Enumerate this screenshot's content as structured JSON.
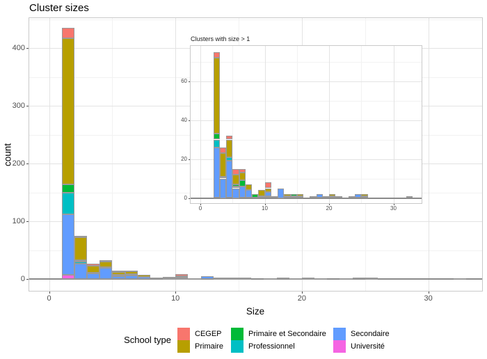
{
  "title": "Cluster sizes",
  "axes": {
    "x_label": "Size",
    "y_label": "count",
    "x_ticks": [
      0,
      10,
      20,
      30
    ],
    "y_ticks": [
      0,
      100,
      200,
      300,
      400
    ]
  },
  "inset": {
    "title": "Clusters with size > 1",
    "x_ticks": [
      0,
      10,
      20,
      30
    ],
    "y_ticks": [
      0,
      20,
      40,
      60
    ]
  },
  "legend": {
    "title": "School type",
    "entries": [
      {
        "label": "CEGEP",
        "color": "#F8766D"
      },
      {
        "label": "Primaire",
        "color": "#B79F00"
      },
      {
        "label": "Primaire et Secondaire",
        "color": "#00BA38"
      },
      {
        "label": "Professionnel",
        "color": "#00BFC4"
      },
      {
        "label": "Secondaire",
        "color": "#619CFF"
      },
      {
        "label": "Université",
        "color": "#F564E3"
      }
    ]
  },
  "stack_order_bottom_up": [
    "Université",
    "Secondaire",
    "Professionnel",
    "Primaire et Secondaire",
    "Primaire",
    "CEGEP"
  ],
  "chart_data": [
    {
      "type": "bar",
      "stacked": true,
      "title": "Cluster sizes",
      "xlabel": "Size",
      "ylabel": "count",
      "note": "histogram, binwidth 1, bar spans [size, size+1)",
      "xlim": [
        0,
        34
      ],
      "ylim": [
        0,
        457
      ],
      "x_ticks": [
        0,
        10,
        20,
        30
      ],
      "y_ticks": [
        0,
        100,
        200,
        300,
        400
      ],
      "x_minor": [
        5,
        15,
        25
      ],
      "y_minor": [
        50,
        150,
        250,
        350,
        450
      ],
      "grid": true,
      "legend_position": "bottom",
      "x": [
        1,
        2,
        3,
        4,
        5,
        6,
        7,
        8,
        9,
        10,
        11,
        12,
        13,
        14,
        15,
        17,
        18,
        19,
        20,
        21,
        23,
        24,
        25,
        32
      ],
      "series": [
        {
          "name": "CEGEP",
          "values": [
            18,
            3,
            3,
            2,
            3,
            2,
            0,
            0,
            0,
            3,
            0,
            0,
            0,
            0,
            0,
            0,
            0,
            0,
            0,
            0,
            0,
            0,
            0,
            0
          ]
        },
        {
          "name": "Primaire",
          "values": [
            253,
            39,
            12,
            9,
            5,
            4,
            3,
            0,
            3,
            2,
            0,
            0,
            1,
            0,
            1,
            0,
            0,
            0,
            1,
            0,
            0,
            0,
            1,
            0
          ]
        },
        {
          "name": "Primaire et Secondaire",
          "values": [
            15,
            3,
            0,
            0,
            1,
            3,
            0,
            2,
            0,
            0,
            0,
            0,
            0,
            1,
            0,
            0,
            0,
            0,
            0,
            0,
            0,
            0,
            0,
            0
          ]
        },
        {
          "name": "Professionnel",
          "values": [
            37,
            4,
            1,
            2,
            1,
            0,
            0,
            0,
            0,
            0,
            0,
            0,
            0,
            0,
            0,
            0,
            0,
            0,
            0,
            0,
            0,
            0,
            0,
            0
          ]
        },
        {
          "name": "Secondaire",
          "values": [
            105,
            26,
            10,
            19,
            5,
            6,
            4,
            0,
            1,
            2,
            1,
            5,
            1,
            0,
            1,
            1,
            2,
            1,
            1,
            1,
            1,
            2,
            1,
            1
          ]
        },
        {
          "name": "Université",
          "values": [
            7,
            0,
            0,
            0,
            0,
            0,
            0,
            0,
            0,
            1,
            0,
            0,
            0,
            1,
            0,
            0,
            0,
            0,
            0,
            0,
            0,
            0,
            0,
            0
          ]
        }
      ]
    },
    {
      "type": "bar",
      "stacked": true,
      "title": "Clusters with size > 1",
      "xlabel": "",
      "ylabel": "",
      "note": "inset: same histogram excluding clusters of size 1",
      "xlim": [
        0,
        34
      ],
      "ylim": [
        0,
        79
      ],
      "x_ticks": [
        0,
        10,
        20,
        30
      ],
      "y_ticks": [
        0,
        20,
        40,
        60
      ],
      "x_minor": [
        5,
        15,
        25
      ],
      "y_minor": [
        10,
        30,
        50,
        70
      ],
      "grid": true,
      "x": [
        2,
        3,
        4,
        5,
        6,
        7,
        8,
        9,
        10,
        11,
        12,
        13,
        14,
        15,
        17,
        18,
        19,
        20,
        21,
        23,
        24,
        25,
        32
      ],
      "series": [
        {
          "name": "CEGEP",
          "values": [
            3,
            3,
            2,
            3,
            2,
            0,
            0,
            0,
            3,
            0,
            0,
            0,
            0,
            0,
            0,
            0,
            0,
            0,
            0,
            0,
            0,
            0,
            0
          ]
        },
        {
          "name": "Primaire",
          "values": [
            39,
            12,
            9,
            5,
            4,
            3,
            0,
            3,
            2,
            0,
            0,
            1,
            0,
            1,
            0,
            0,
            0,
            1,
            0,
            0,
            0,
            1,
            0
          ]
        },
        {
          "name": "Primaire et Secondaire",
          "values": [
            3,
            0,
            0,
            1,
            3,
            0,
            2,
            0,
            0,
            0,
            0,
            0,
            1,
            0,
            0,
            0,
            0,
            0,
            0,
            0,
            0,
            0,
            0
          ]
        },
        {
          "name": "Professionnel",
          "values": [
            4,
            1,
            2,
            1,
            0,
            0,
            0,
            0,
            0,
            0,
            0,
            0,
            0,
            0,
            0,
            0,
            0,
            0,
            0,
            0,
            0,
            0,
            0
          ]
        },
        {
          "name": "Secondaire",
          "values": [
            26,
            10,
            19,
            5,
            6,
            4,
            0,
            1,
            2,
            1,
            5,
            1,
            0,
            1,
            1,
            2,
            1,
            1,
            1,
            1,
            2,
            1,
            1
          ]
        },
        {
          "name": "Université",
          "values": [
            0,
            0,
            0,
            0,
            0,
            0,
            0,
            0,
            1,
            0,
            0,
            0,
            1,
            0,
            0,
            0,
            0,
            0,
            0,
            0,
            0,
            0,
            0
          ]
        }
      ]
    }
  ]
}
